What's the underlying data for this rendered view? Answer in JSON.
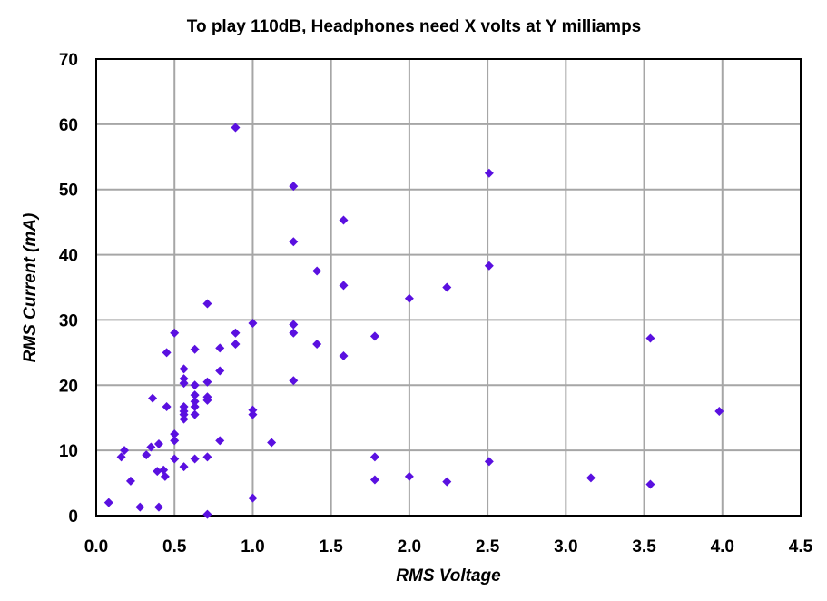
{
  "chart_data": {
    "type": "scatter",
    "title": "To play 110dB, Headphones need X volts at Y milliamps",
    "xlabel": "RMS Voltage",
    "ylabel": "RMS Current (mA)",
    "xlim": [
      0,
      4.5
    ],
    "ylim": [
      0,
      70
    ],
    "xticks": [
      "0.0",
      "0.5",
      "1.0",
      "1.5",
      "2.0",
      "2.5",
      "3.0",
      "3.5",
      "4.0",
      "4.5"
    ],
    "yticks": [
      "0",
      "10",
      "20",
      "30",
      "40",
      "50",
      "60",
      "70"
    ],
    "grid": true,
    "legend": "none",
    "marker": "diamond",
    "color": "#5a10e0",
    "points": [
      [
        0.08,
        2.0
      ],
      [
        0.16,
        9.0
      ],
      [
        0.18,
        10.0
      ],
      [
        0.22,
        5.3
      ],
      [
        0.28,
        1.3
      ],
      [
        0.32,
        9.3
      ],
      [
        0.35,
        10.5
      ],
      [
        0.36,
        18.0
      ],
      [
        0.39,
        6.8
      ],
      [
        0.4,
        1.3
      ],
      [
        0.4,
        11.0
      ],
      [
        0.43,
        7.0
      ],
      [
        0.44,
        6.0
      ],
      [
        0.45,
        16.7
      ],
      [
        0.45,
        25.0
      ],
      [
        0.5,
        8.7
      ],
      [
        0.5,
        11.5
      ],
      [
        0.5,
        12.5
      ],
      [
        0.5,
        28.0
      ],
      [
        0.56,
        7.5
      ],
      [
        0.56,
        14.8
      ],
      [
        0.56,
        15.5
      ],
      [
        0.56,
        16.0
      ],
      [
        0.56,
        16.7
      ],
      [
        0.56,
        20.3
      ],
      [
        0.56,
        21.0
      ],
      [
        0.56,
        22.5
      ],
      [
        0.63,
        8.7
      ],
      [
        0.63,
        15.5
      ],
      [
        0.63,
        16.7
      ],
      [
        0.63,
        17.5
      ],
      [
        0.63,
        18.5
      ],
      [
        0.63,
        20.0
      ],
      [
        0.63,
        25.5
      ],
      [
        0.71,
        0.2
      ],
      [
        0.71,
        9.0
      ],
      [
        0.71,
        17.7
      ],
      [
        0.71,
        18.2
      ],
      [
        0.71,
        20.5
      ],
      [
        0.71,
        32.5
      ],
      [
        0.79,
        11.5
      ],
      [
        0.79,
        22.2
      ],
      [
        0.79,
        25.7
      ],
      [
        0.89,
        26.3
      ],
      [
        0.89,
        28.0
      ],
      [
        0.89,
        59.5
      ],
      [
        1.0,
        2.7
      ],
      [
        1.0,
        15.5
      ],
      [
        1.0,
        16.2
      ],
      [
        1.0,
        29.5
      ],
      [
        1.12,
        11.2
      ],
      [
        1.26,
        20.7
      ],
      [
        1.26,
        28.0
      ],
      [
        1.26,
        29.3
      ],
      [
        1.26,
        42.0
      ],
      [
        1.26,
        50.5
      ],
      [
        1.41,
        26.3
      ],
      [
        1.41,
        37.5
      ],
      [
        1.58,
        24.5
      ],
      [
        1.58,
        35.3
      ],
      [
        1.58,
        45.3
      ],
      [
        1.78,
        5.5
      ],
      [
        1.78,
        9.0
      ],
      [
        1.78,
        27.5
      ],
      [
        2.0,
        6.0
      ],
      [
        2.0,
        33.3
      ],
      [
        2.24,
        5.2
      ],
      [
        2.24,
        35.0
      ],
      [
        2.51,
        8.3
      ],
      [
        2.51,
        38.3
      ],
      [
        2.51,
        52.5
      ],
      [
        3.16,
        5.8
      ],
      [
        3.54,
        4.8
      ],
      [
        3.54,
        27.2
      ],
      [
        3.98,
        16.0
      ]
    ]
  }
}
